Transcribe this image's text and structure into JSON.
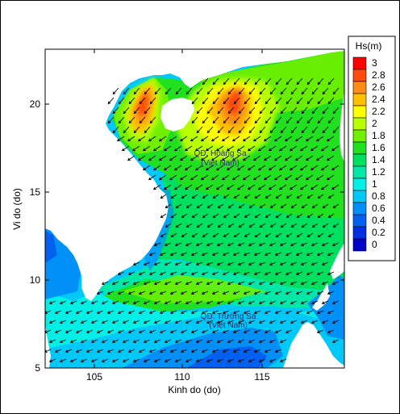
{
  "figure": {
    "xlabel": "Kinh do (do)",
    "ylabel": "Vi do (do)",
    "xticks": [
      "105",
      "110",
      "115"
    ],
    "yticks": [
      "5",
      "10",
      "15",
      "20"
    ]
  },
  "legend": {
    "title": "Hs(m)",
    "levels": [
      "3",
      "2.8",
      "2.6",
      "2.4",
      "2.2",
      "2",
      "1.8",
      "1.6",
      "1.4",
      "1.2",
      "1",
      "0.8",
      "0.6",
      "0.4",
      "0.2",
      "0"
    ],
    "colors": [
      "#ff0000",
      "#ff4a10",
      "#ff8c18",
      "#ffc000",
      "#ffff00",
      "#b8ff00",
      "#70f000",
      "#20e020",
      "#00e060",
      "#00e8a8",
      "#00f0e8",
      "#00c8f8",
      "#0090f8",
      "#0060f0",
      "#0030e0",
      "#0000c8"
    ]
  },
  "annotations": {
    "hoang_sa_line1": "QĐ. Hoàng Sa",
    "hoang_sa_line2": "(Việt Nam)",
    "truong_sa_line1": "QĐ. Trường Sa",
    "truong_sa_line2": "(Việt Nam)"
  },
  "map_data": {
    "variable": "significant wave height",
    "unit": "m",
    "lon_range": [
      102,
      119.5
    ],
    "lat_range": [
      5,
      23
    ],
    "wind_direction": "from northeast (vectors pointing southwest)",
    "max_regions": [
      {
        "lon": 107.8,
        "lat": 19.5,
        "hs": 3.0
      },
      {
        "lon": 113.0,
        "lat": 20.3,
        "hs": 2.9
      }
    ]
  }
}
